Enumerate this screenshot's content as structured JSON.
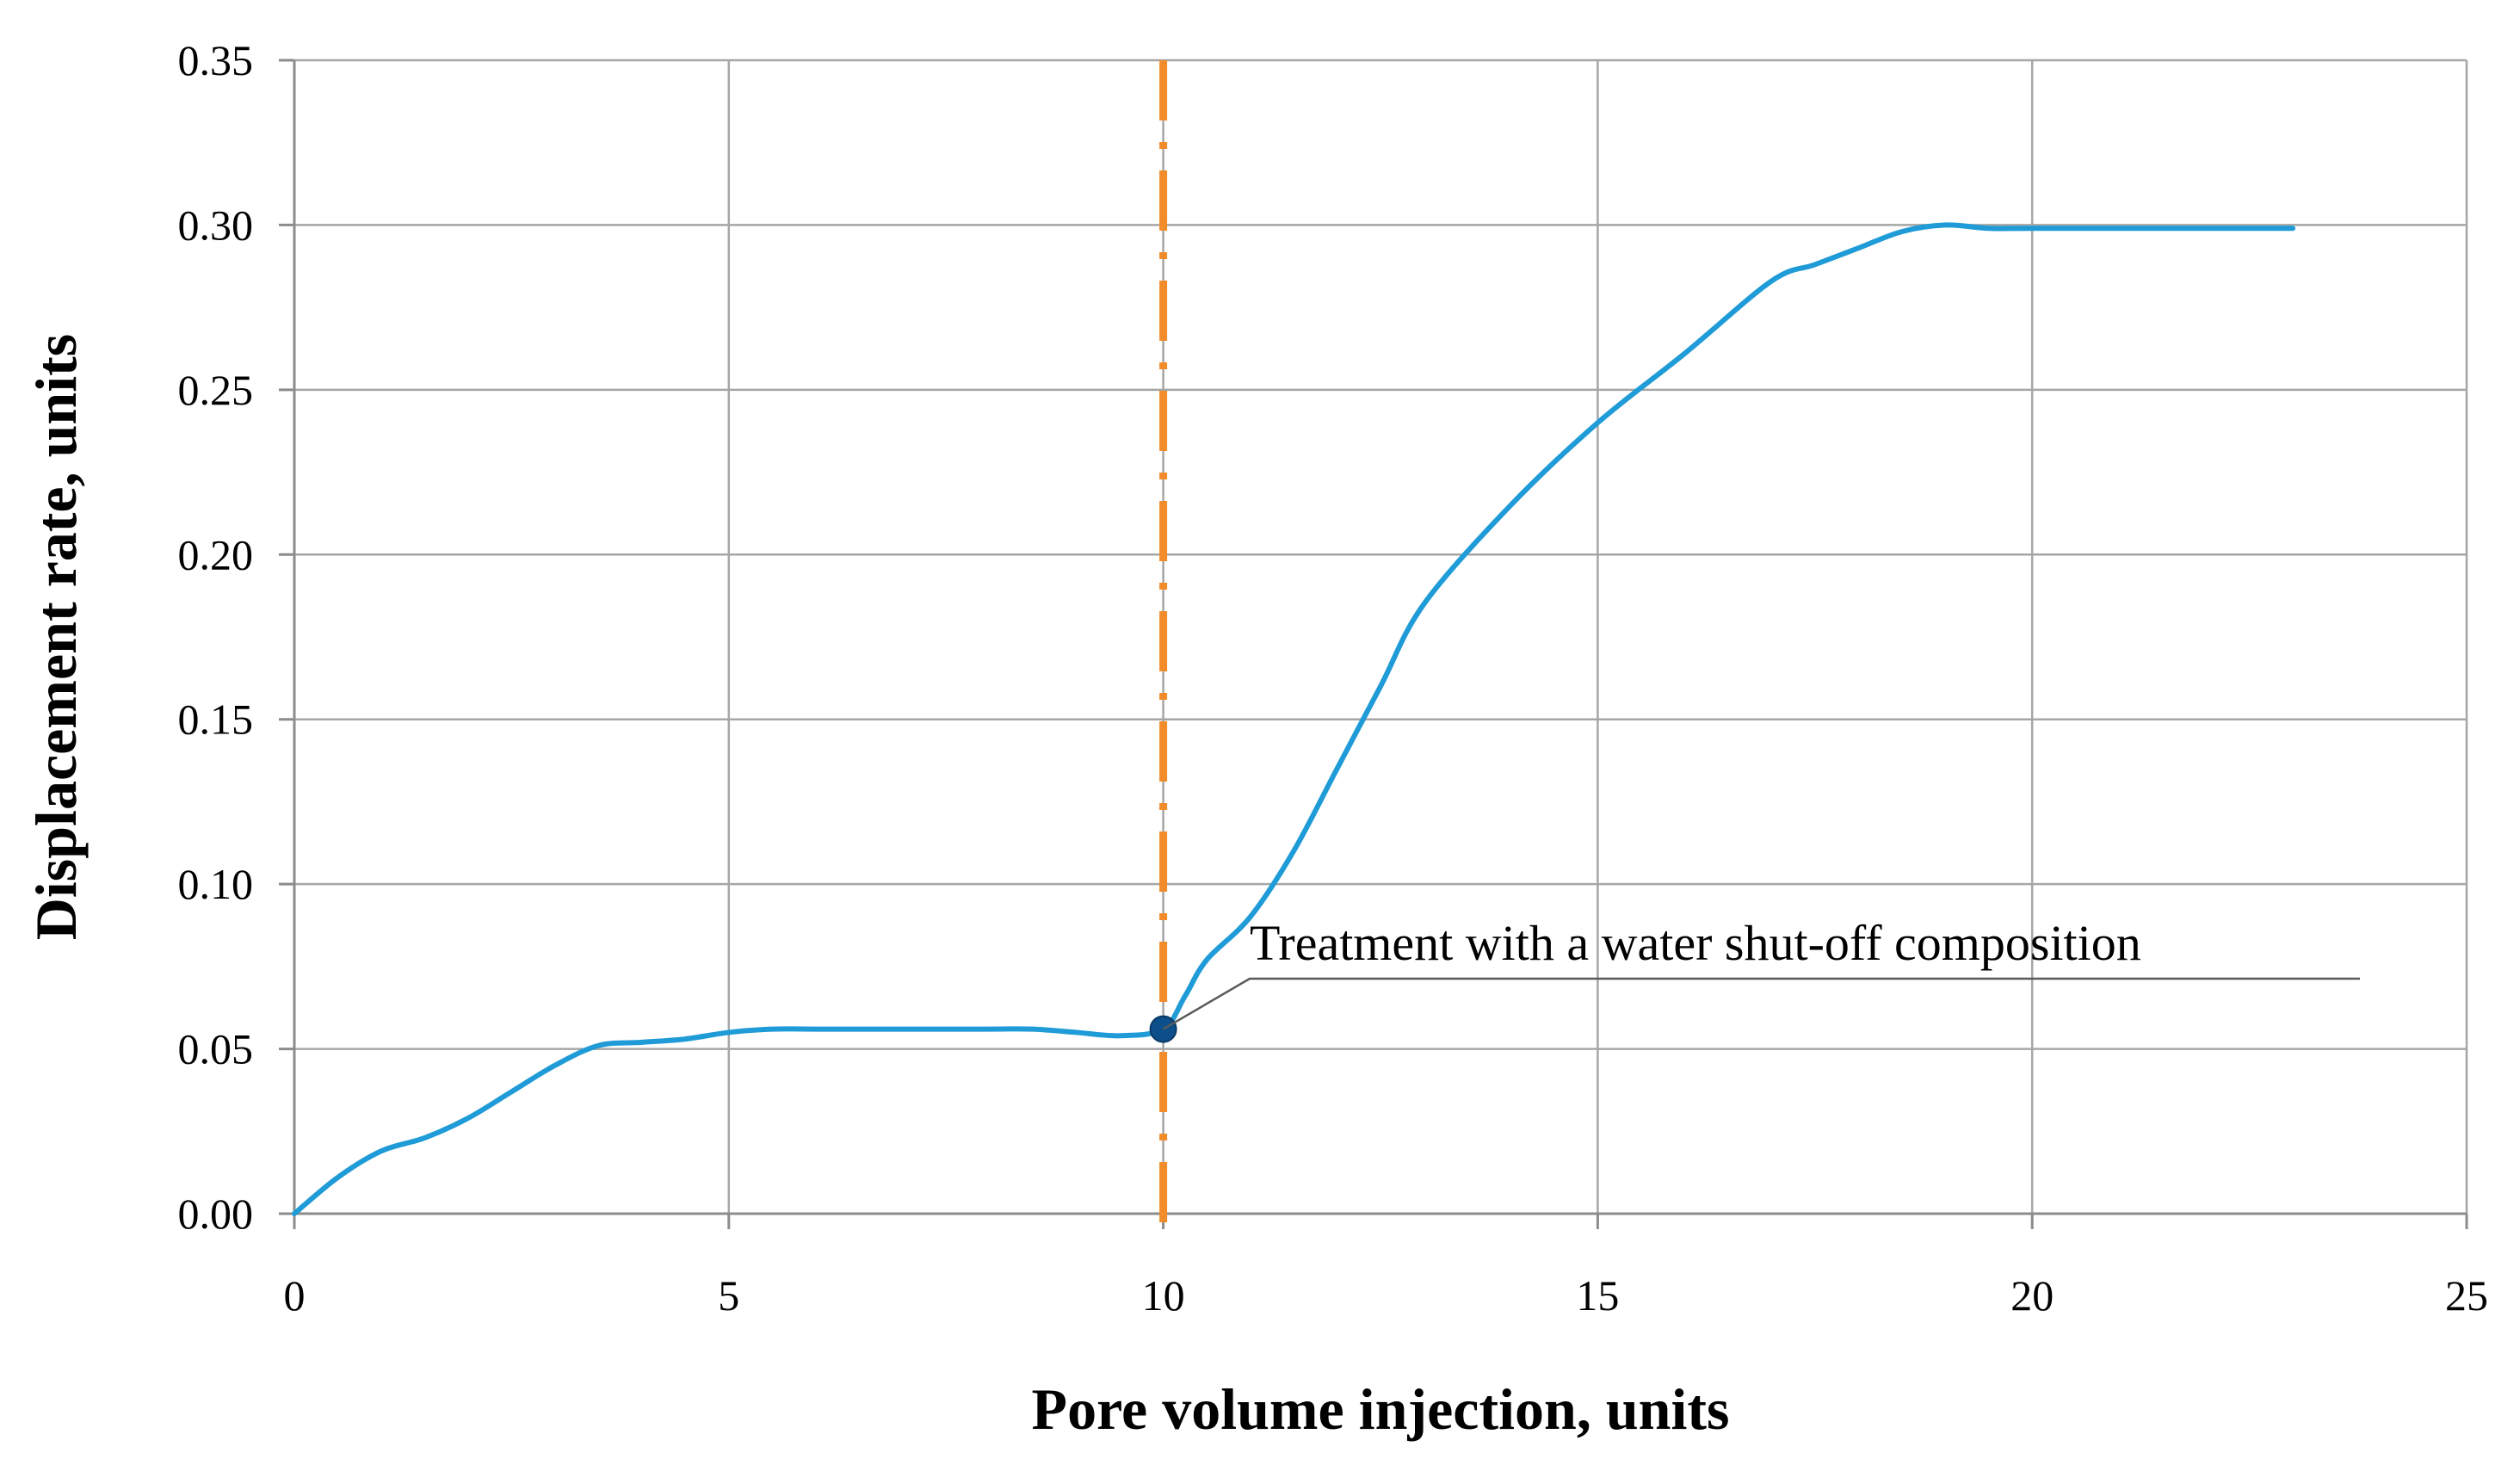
{
  "chart_data": {
    "type": "line",
    "title": "",
    "xlabel": "Pore volume injection, units",
    "ylabel": "Displacement rate, units",
    "xlim": [
      0,
      25
    ],
    "ylim": [
      0,
      0.35
    ],
    "grid": true,
    "x_ticks": [
      {
        "value": 0,
        "label": "0"
      },
      {
        "value": 5,
        "label": "5"
      },
      {
        "value": 10,
        "label": "10"
      },
      {
        "value": 15,
        "label": "15"
      },
      {
        "value": 20,
        "label": "20"
      },
      {
        "value": 25,
        "label": "25"
      }
    ],
    "y_ticks": [
      {
        "value": 0,
        "label": "0.00"
      },
      {
        "value": 0.05,
        "label": "0.05"
      },
      {
        "value": 0.1,
        "label": "0.10"
      },
      {
        "value": 0.15,
        "label": "0.15"
      },
      {
        "value": 0.2,
        "label": "0.20"
      },
      {
        "value": 0.25,
        "label": "0.25"
      },
      {
        "value": 0.3,
        "label": "0.30"
      },
      {
        "value": 0.35,
        "label": "0.35"
      }
    ],
    "series": [
      {
        "name": "Displacement rate",
        "color": "#1f9bd7",
        "x": [
          0,
          0.5,
          1.0,
          1.5,
          2.0,
          2.5,
          3.0,
          3.5,
          4.0,
          4.5,
          5.0,
          5.5,
          6.0,
          7.0,
          8.0,
          8.5,
          9.0,
          9.5,
          10.0,
          10.25,
          10.5,
          11.0,
          11.5,
          12.0,
          12.5,
          13.0,
          14.0,
          15.0,
          16.0,
          17.0,
          17.5,
          18.0,
          18.5,
          19.0,
          19.5,
          20.0,
          21.0,
          22.0,
          23.0
        ],
        "y": [
          0,
          0.011,
          0.019,
          0.023,
          0.029,
          0.037,
          0.045,
          0.051,
          0.052,
          0.053,
          0.055,
          0.056,
          0.056,
          0.056,
          0.056,
          0.056,
          0.055,
          0.054,
          0.056,
          0.066,
          0.077,
          0.09,
          0.11,
          0.135,
          0.16,
          0.185,
          0.215,
          0.24,
          0.261,
          0.283,
          0.288,
          0.293,
          0.298,
          0.3,
          0.299,
          0.299,
          0.299,
          0.299,
          0.299
        ]
      }
    ],
    "vertical_reference": {
      "x": 10,
      "color": "#f28c2a",
      "style": "dash-dot"
    },
    "marked_point": {
      "x": 10,
      "y": 0.056,
      "color": "#0d4f8b"
    },
    "annotation": {
      "text": "Treatment with a water shut-off composition",
      "points_to": {
        "x": 10,
        "y": 0.056
      }
    }
  }
}
